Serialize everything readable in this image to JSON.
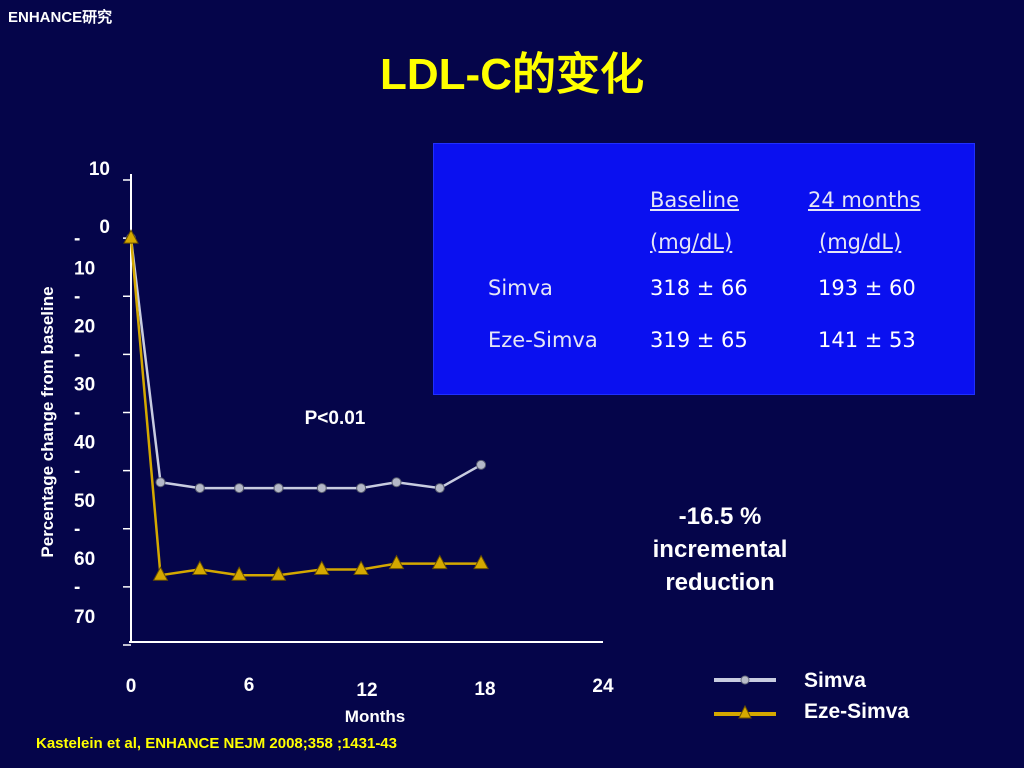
{
  "header": {
    "corner_title": "ENHANCE研究",
    "title": "LDL-C的变化"
  },
  "chart_data": {
    "type": "line",
    "xlabel": "Months",
    "ylabel": "Percentage change from baseline",
    "xlim": [
      0,
      24
    ],
    "ylim": [
      -70,
      10
    ],
    "x_ticks": [
      {
        "value": 0,
        "label": "0"
      },
      {
        "value": 6,
        "label": "6"
      },
      {
        "value": 12,
        "label": "12"
      },
      {
        "value": 18,
        "label": "18"
      },
      {
        "value": 24,
        "label": "24"
      }
    ],
    "y_ticks": [
      {
        "value": 10,
        "label": "10"
      },
      {
        "value": 0,
        "label": "0"
      },
      {
        "value": -10,
        "label": "-\n10"
      },
      {
        "value": -20,
        "label": "-\n20"
      },
      {
        "value": -30,
        "label": "-\n30"
      },
      {
        "value": -40,
        "label": "-\n40"
      },
      {
        "value": -50,
        "label": "-\n50"
      },
      {
        "value": -60,
        "label": "-\n60"
      },
      {
        "value": -70,
        "label": "-\n70"
      }
    ],
    "series": [
      {
        "name": "Simva",
        "marker": "circle",
        "color": "#c8cce0",
        "x": [
          0,
          1.5,
          3.5,
          5.5,
          7.5,
          9.7,
          11.7,
          13.5,
          15.7,
          17.8
        ],
        "values": [
          0,
          -42,
          -43,
          -43,
          -43,
          -43,
          -43,
          -42,
          -43,
          -39
        ]
      },
      {
        "name": "Eze-Simva",
        "marker": "triangle",
        "color": "#d4a800",
        "x": [
          0,
          1.5,
          3.5,
          5.5,
          7.5,
          9.7,
          11.7,
          13.5,
          15.7,
          17.8
        ],
        "values": [
          0,
          -58,
          -57,
          -58,
          -58,
          -57,
          -57,
          -56,
          -56,
          -56
        ]
      }
    ],
    "annotations": [
      "P<0.01"
    ]
  },
  "table": {
    "headers": [
      {
        "line1": "Baseline",
        "line2": "(mg/dL)"
      },
      {
        "line1": "24 months",
        "line2": "(mg/dL)"
      }
    ],
    "rows": [
      {
        "label": "Simva",
        "baseline": "318 ± 66",
        "m24": "193 ± 60"
      },
      {
        "label": "Eze-Simva",
        "baseline": "319 ± 65",
        "m24": "141 ± 53"
      }
    ]
  },
  "annotation": {
    "line1": "-16.5 %",
    "line2": "incremental",
    "line3": "reduction"
  },
  "legend": {
    "simva": "Simva",
    "ezesimva": "Eze-Simva"
  },
  "citation": "Kastelein et al, ENHANCE NEJM 2008;358 ;1431-43",
  "colors": {
    "background": "#05054a",
    "title": "#ffff00",
    "table_bg": "#0a10f0",
    "simva": "#c8cce0",
    "ezesimva": "#d4a800"
  }
}
